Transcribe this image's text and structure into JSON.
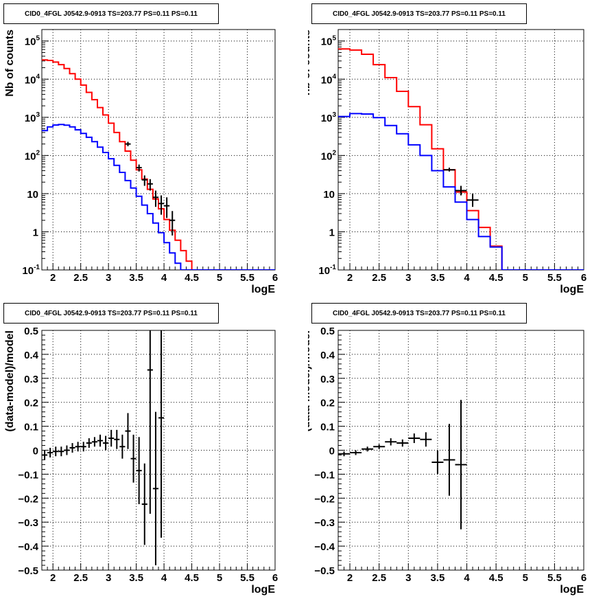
{
  "panels": [
    {
      "title": "CID0_4FGL J0542.9-0913 TS=203.77 PS=0.11 PS=0.11",
      "chart_data": {
        "type": "line",
        "xlabel": "logE",
        "ylabel": "Nb of counts",
        "xlim": [
          1.8,
          6.0
        ],
        "ylim": [
          0.1,
          200000
        ],
        "yscale": "log",
        "grid": true,
        "xticks": [
          "2",
          "2.5",
          "3",
          "3.5",
          "4",
          "4.5",
          "5",
          "5.5",
          "6"
        ],
        "yticks": [
          "10^-1",
          "1",
          "10",
          "10^2",
          "10^3",
          "10^4",
          "10^5"
        ],
        "binwidth": 0.1,
        "series": [
          {
            "color": "#ff0000",
            "kind": "step",
            "x": [
              1.8,
              1.9,
              2.0,
              2.1,
              2.2,
              2.3,
              2.4,
              2.5,
              2.6,
              2.7,
              2.8,
              2.9,
              3.0,
              3.1,
              3.2,
              3.3,
              3.4,
              3.5,
              3.6,
              3.7,
              3.8,
              3.9,
              4.0,
              4.1,
              4.2,
              4.3,
              4.4,
              4.5,
              4.6,
              4.7,
              4.8,
              4.9,
              5.0,
              5.1,
              5.2,
              5.3,
              5.4,
              5.5,
              5.6,
              5.7,
              5.8,
              5.9
            ],
            "y": [
              32000,
              31000,
              28000,
              24000,
              19000,
              14000,
              10000,
              7000,
              4500,
              2900,
              1800,
              1150,
              700,
              400,
              230,
              130,
              75,
              42,
              24,
              13,
              7.2,
              4,
              2.1,
              1.1,
              0.6,
              0.32,
              0.17,
              0.09,
              0.05,
              0.05,
              0.05,
              0.05,
              0.05,
              0.05,
              0.05,
              0.05,
              0.05,
              0.05,
              0.05,
              0.05,
              0.05,
              0.05
            ]
          },
          {
            "color": "#0000ff",
            "kind": "step",
            "x": [
              1.8,
              1.9,
              2.0,
              2.1,
              2.2,
              2.3,
              2.4,
              2.5,
              2.6,
              2.7,
              2.8,
              2.9,
              3.0,
              3.1,
              3.2,
              3.3,
              3.4,
              3.5,
              3.6,
              3.7,
              3.8,
              3.9,
              4.0,
              4.1,
              4.2,
              4.3,
              4.4,
              4.5,
              4.6,
              4.7,
              4.8,
              4.9,
              5.0,
              5.1,
              5.2,
              5.3,
              5.4,
              5.5,
              5.6,
              5.7,
              5.8,
              5.9
            ],
            "y": [
              450,
              560,
              630,
              650,
              620,
              560,
              470,
              380,
              300,
              230,
              165,
              120,
              82,
              55,
              36,
              22,
              14,
              8.5,
              5,
              3,
              1.7,
              0.95,
              0.52,
              0.28,
              0.15,
              0.09,
              0.09,
              0.09,
              0.09,
              0.09,
              0.09,
              0.09,
              0.09,
              0.09,
              0.09,
              0.09,
              0.09,
              0.09,
              0.09,
              0.09,
              0.09,
              0.09
            ]
          }
        ],
        "points": {
          "x": [
            3.35,
            3.55,
            3.65,
            3.75,
            3.85,
            3.95,
            4.05,
            4.15
          ],
          "y": [
            200,
            48,
            23,
            18,
            8,
            5.5,
            4.8,
            2
          ],
          "ylo": [
            175,
            38,
            16,
            12,
            4.5,
            2.8,
            2.3,
            0.8
          ],
          "yhi": [
            228,
            58,
            30,
            24,
            12,
            9,
            8,
            3.5
          ]
        }
      }
    },
    {
      "title": "CID0_4FGL J0542.9-0913 TS=203.77 PS=0.11 PS=0.11",
      "chart_data": {
        "type": "line",
        "xlabel": "logE",
        "ylabel": "nb of counts",
        "xlim": [
          1.8,
          6.0
        ],
        "ylim": [
          0.1,
          200000
        ],
        "yscale": "log",
        "grid": true,
        "xticks": [
          "2",
          "2.5",
          "3",
          "3.5",
          "4",
          "4.5",
          "5",
          "5.5",
          "6"
        ],
        "yticks": [
          "10^-1",
          "1",
          "10",
          "10^2",
          "10^3",
          "10^4",
          "10^5"
        ],
        "binwidth": 0.2,
        "series": [
          {
            "color": "#ff0000",
            "kind": "step",
            "x": [
              1.8,
              2.0,
              2.2,
              2.4,
              2.6,
              2.8,
              3.0,
              3.2,
              3.4,
              3.6,
              3.8,
              4.0,
              4.2,
              4.4,
              4.6,
              4.8,
              5.0,
              5.2,
              5.4,
              5.6,
              5.8
            ],
            "y": [
              62000,
              58000,
              45000,
              24000,
              11000,
              4800,
              1900,
              640,
              150,
              42,
              11,
              3.6,
              1.3,
              0.42,
              0.05,
              0.05,
              0.05,
              0.05,
              0.05,
              0.05,
              0.05
            ]
          },
          {
            "color": "#0000ff",
            "kind": "step",
            "x": [
              1.8,
              2.0,
              2.2,
              2.4,
              2.6,
              2.8,
              3.0,
              3.2,
              3.4,
              3.6,
              3.8,
              4.0,
              4.2,
              4.4,
              4.6,
              4.8,
              5.0,
              5.2,
              5.4,
              5.6,
              5.8
            ],
            "y": [
              1050,
              1250,
              1220,
              980,
              610,
              370,
              190,
              100,
              40,
              15,
              6,
              2.1,
              0.75,
              0.4,
              0.09,
              0.09,
              0.09,
              0.09,
              0.09,
              0.09,
              0.09
            ]
          }
        ],
        "points": {
          "x": [
            3.7,
            3.9,
            4.1
          ],
          "y": [
            42,
            12,
            6.8
          ],
          "ylo": [
            38,
            9,
            4.5
          ],
          "yhi": [
            48,
            16,
            10
          ]
        }
      }
    },
    {
      "title": "CID0_4FGL J0542.9-0913 TS=203.77 PS=0.11 PS=0.11",
      "chart_data": {
        "type": "scatter",
        "xlabel": "logE",
        "ylabel": "(data-model)/model",
        "xlim": [
          1.8,
          6.0
        ],
        "ylim": [
          -0.5,
          0.5
        ],
        "grid": true,
        "xticks": [
          "2",
          "2.5",
          "3",
          "3.5",
          "4",
          "4.5",
          "5",
          "5.5",
          "6"
        ],
        "yticks": [
          "−0.5",
          "−0.4",
          "−0.3",
          "−0.2",
          "−0.1",
          "0",
          "0.1",
          "0.2",
          "0.3",
          "0.4",
          "0.5"
        ],
        "xerr": 0.05,
        "points": {
          "x": [
            1.85,
            1.95,
            2.05,
            2.15,
            2.25,
            2.35,
            2.45,
            2.55,
            2.65,
            2.75,
            2.85,
            2.95,
            3.05,
            3.15,
            3.25,
            3.35,
            3.45,
            3.55,
            3.65,
            3.75,
            3.85,
            3.95
          ],
          "y": [
            -0.02,
            -0.01,
            -0.005,
            -0.005,
            0.0,
            0.01,
            0.015,
            0.015,
            0.03,
            0.035,
            0.04,
            0.03,
            0.05,
            0.045,
            0.015,
            0.08,
            -0.035,
            -0.085,
            -0.225,
            0.335,
            -0.16,
            0.135
          ],
          "err": [
            0.02,
            0.02,
            0.02,
            0.02,
            0.02,
            0.02,
            0.02,
            0.02,
            0.02,
            0.02,
            0.025,
            0.03,
            0.035,
            0.04,
            0.05,
            0.075,
            0.1,
            0.14,
            0.17,
            0.6,
            0.32,
            0.5
          ]
        }
      }
    },
    {
      "title": "CID0_4FGL J0542.9-0913 TS=203.77 PS=0.11 PS=0.11",
      "chart_data": {
        "type": "scatter",
        "xlabel": "logE",
        "ylabel": "(data-model)/model",
        "xlim": [
          1.8,
          6.0
        ],
        "ylim": [
          -0.5,
          0.5
        ],
        "grid": true,
        "xticks": [
          "2",
          "2.5",
          "3",
          "3.5",
          "4",
          "4.5",
          "5",
          "5.5",
          "6"
        ],
        "yticks": [
          "−0.5",
          "−0.4",
          "−0.3",
          "−0.2",
          "−0.1",
          "0",
          "0.1",
          "0.2",
          "0.3",
          "0.4",
          "0.5"
        ],
        "xerr": 0.1,
        "points": {
          "x": [
            1.9,
            2.1,
            2.3,
            2.5,
            2.7,
            2.9,
            3.1,
            3.3,
            3.5,
            3.7,
            3.9
          ],
          "y": [
            -0.015,
            -0.01,
            0.005,
            0.015,
            0.035,
            0.03,
            0.05,
            0.045,
            -0.05,
            -0.04,
            -0.06
          ],
          "err": [
            0.01,
            0.01,
            0.01,
            0.01,
            0.015,
            0.015,
            0.02,
            0.03,
            0.05,
            0.15,
            0.27
          ]
        }
      }
    }
  ]
}
